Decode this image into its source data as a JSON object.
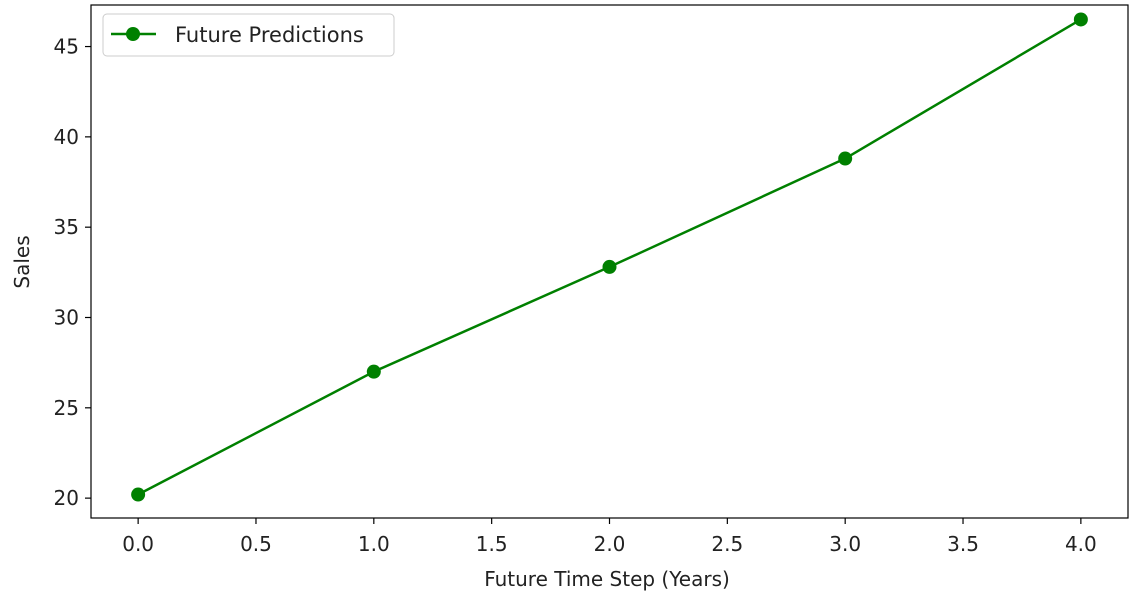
{
  "chart_data": {
    "type": "line",
    "title": "",
    "xlabel": "Future Time Step (Years)",
    "ylabel": "Sales",
    "xlim": [
      -0.2,
      4.2
    ],
    "ylim": [
      18.9,
      47.3
    ],
    "x_ticks": [
      "0.0",
      "0.5",
      "1.0",
      "1.5",
      "2.0",
      "2.5",
      "3.0",
      "3.5",
      "4.0"
    ],
    "y_ticks": [
      "20",
      "25",
      "30",
      "35",
      "40",
      "45"
    ],
    "grid": false,
    "legend_position": "top-left",
    "series": [
      {
        "name": "Future Predictions",
        "color": "#008000",
        "marker": "circle",
        "x": [
          0.0,
          1.0,
          2.0,
          3.0,
          4.0
        ],
        "y": [
          20.2,
          27.0,
          32.8,
          38.8,
          46.5
        ]
      }
    ]
  }
}
